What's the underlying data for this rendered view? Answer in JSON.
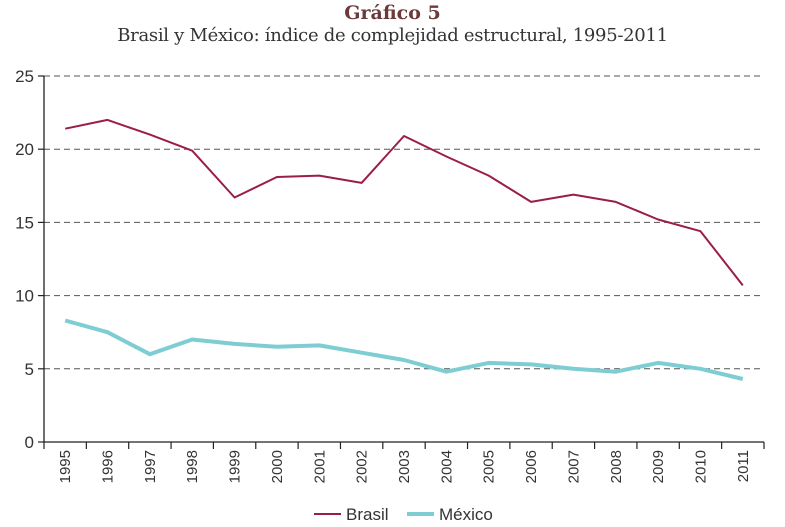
{
  "header": {
    "chart_number": "Gráfico 5",
    "title": "Brasil y México: índice de complejidad estructural, 1995-2011"
  },
  "colors": {
    "brasil": "#9b1e45",
    "mexico": "#7ecdd3",
    "grid": "#555555",
    "axis": "#222222"
  },
  "chart_data": {
    "type": "line",
    "title": "Brasil y México: índice de complejidad estructural, 1995-2011",
    "subtitle": "Gráfico 5",
    "xlabel": "",
    "ylabel": "",
    "ylim": [
      0,
      25
    ],
    "yticks": [
      0,
      5,
      10,
      15,
      20,
      25
    ],
    "grid": true,
    "legend": "bottom-center",
    "categories": [
      "1995",
      "1996",
      "1997",
      "1998",
      "1999",
      "2000",
      "2001",
      "2002",
      "2003",
      "2004",
      "2005",
      "2006",
      "2007",
      "2008",
      "2009",
      "2010",
      "2011"
    ],
    "series": [
      {
        "name": "Brasil",
        "values": [
          21.4,
          22.0,
          21.0,
          19.9,
          16.7,
          18.1,
          18.2,
          17.7,
          20.9,
          19.5,
          18.2,
          16.4,
          16.9,
          16.4,
          15.2,
          14.4,
          10.7
        ]
      },
      {
        "name": "México",
        "values": [
          8.3,
          7.5,
          6.0,
          7.0,
          6.7,
          6.5,
          6.6,
          6.1,
          5.6,
          4.8,
          5.4,
          5.3,
          5.0,
          4.8,
          5.4,
          5.0,
          4.3
        ]
      }
    ]
  }
}
